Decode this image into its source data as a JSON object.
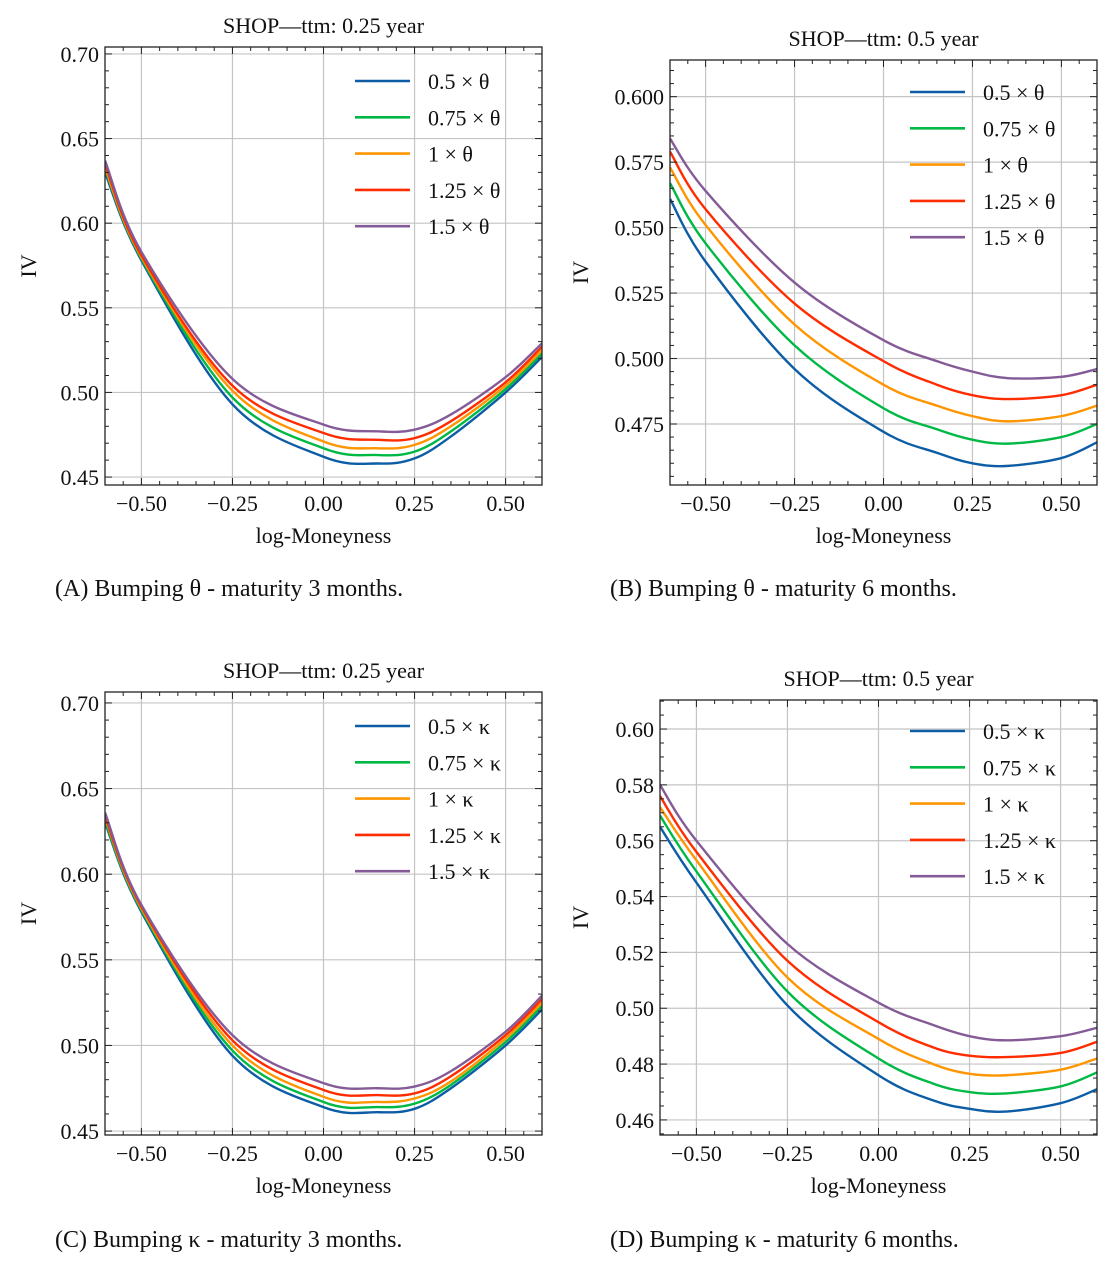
{
  "colors": {
    "series": [
      "#0C5DA5",
      "#00B945",
      "#FF9500",
      "#FF2C00",
      "#845B97"
    ],
    "grid": "#c4c4c4",
    "axis": "#222222"
  },
  "chart_data": [
    {
      "type": "line",
      "title": "SHOP—ttm: 0.25 year",
      "xlabel": "log-Moneyness",
      "ylabel": "IV",
      "xlim": [
        -0.6,
        0.6
      ],
      "ylim": [
        0.4453,
        0.7041
      ],
      "xticks": [
        "−0.50",
        "−0.25",
        "0.00",
        "0.25",
        "0.50"
      ],
      "xtick_values": [
        -0.5,
        -0.25,
        0,
        0.25,
        0.5
      ],
      "yticks": [
        "0.45",
        "0.50",
        "0.55",
        "0.60",
        "0.65",
        "0.70"
      ],
      "ytick_values": [
        0.45,
        0.5,
        0.55,
        0.6,
        0.65,
        0.7
      ],
      "ytick_minor_step": 0.01,
      "grid": true,
      "legend_position": "top-right",
      "caption_label": "(A)",
      "caption_text": "Bumping θ - maturity 3 months.",
      "x": [
        -0.6,
        -0.5,
        -0.25,
        0,
        0.15,
        0.25,
        0.35,
        0.5,
        0.6
      ],
      "series": [
        {
          "name": "0.5 × θ",
          "values": [
            0.63,
            0.578,
            0.493,
            0.462,
            0.458,
            0.461,
            0.474,
            0.5,
            0.521
          ]
        },
        {
          "name": "0.75 × θ",
          "values": [
            0.632,
            0.579,
            0.497,
            0.467,
            0.463,
            0.465,
            0.477,
            0.502,
            0.523
          ]
        },
        {
          "name": "1 × θ",
          "values": [
            0.633,
            0.58,
            0.501,
            0.471,
            0.467,
            0.469,
            0.48,
            0.504,
            0.525
          ]
        },
        {
          "name": "1.25 × θ",
          "values": [
            0.635,
            0.581,
            0.504,
            0.476,
            0.472,
            0.473,
            0.483,
            0.506,
            0.527
          ]
        },
        {
          "name": "1.5 × θ",
          "values": [
            0.637,
            0.583,
            0.508,
            0.481,
            0.477,
            0.478,
            0.487,
            0.509,
            0.529
          ]
        }
      ]
    },
    {
      "type": "line",
      "title": "SHOP—ttm: 0.5 year",
      "xlabel": "log-Moneyness",
      "ylabel": "IV",
      "xlim": [
        -0.6,
        0.6
      ],
      "ylim": [
        0.4517,
        0.614
      ],
      "xticks": [
        "−0.50",
        "−0.25",
        "0.00",
        "0.25",
        "0.50"
      ],
      "xtick_values": [
        -0.5,
        -0.25,
        0,
        0.25,
        0.5
      ],
      "yticks": [
        "0.475",
        "0.500",
        "0.525",
        "0.550",
        "0.575",
        "0.600"
      ],
      "ytick_values": [
        0.475,
        0.5,
        0.525,
        0.55,
        0.575,
        0.6
      ],
      "ytick_minor_step": 0.005,
      "grid": true,
      "legend_position": "top-right",
      "caption_label": "(B)",
      "caption_text": "Bumping θ - maturity 6 months.",
      "x": [
        -0.6,
        -0.5,
        -0.25,
        0,
        0.15,
        0.25,
        0.35,
        0.5,
        0.6
      ],
      "series": [
        {
          "name": "0.5 × θ",
          "values": [
            0.561,
            0.537,
            0.496,
            0.472,
            0.464,
            0.46,
            0.459,
            0.462,
            0.468
          ]
        },
        {
          "name": "0.75 × θ",
          "values": [
            0.567,
            0.544,
            0.505,
            0.481,
            0.473,
            0.469,
            0.4675,
            0.47,
            0.475
          ]
        },
        {
          "name": "1 × θ",
          "values": [
            0.573,
            0.551,
            0.513,
            0.49,
            0.482,
            0.478,
            0.476,
            0.478,
            0.482
          ]
        },
        {
          "name": "1.25 × θ",
          "values": [
            0.579,
            0.557,
            0.521,
            0.499,
            0.49,
            0.486,
            0.4845,
            0.486,
            0.49
          ]
        },
        {
          "name": "1.5 × θ",
          "values": [
            0.584,
            0.564,
            0.529,
            0.507,
            0.499,
            0.495,
            0.4925,
            0.493,
            0.496
          ]
        }
      ]
    },
    {
      "type": "line",
      "title": "SHOP—ttm: 0.25 year",
      "xlabel": "log-Moneyness",
      "ylabel": "IV",
      "xlim": [
        -0.6,
        0.6
      ],
      "ylim": [
        0.4477,
        0.7064
      ],
      "xticks": [
        "−0.50",
        "−0.25",
        "0.00",
        "0.25",
        "0.50"
      ],
      "xtick_values": [
        -0.5,
        -0.25,
        0,
        0.25,
        0.5
      ],
      "yticks": [
        "0.45",
        "0.50",
        "0.55",
        "0.60",
        "0.65",
        "0.70"
      ],
      "ytick_values": [
        0.45,
        0.5,
        0.55,
        0.6,
        0.65,
        0.7
      ],
      "ytick_minor_step": 0.01,
      "grid": true,
      "legend_position": "top-right",
      "caption_label": "(C)",
      "caption_text": "Bumping κ - maturity 3 months.",
      "x": [
        -0.6,
        -0.5,
        -0.25,
        0,
        0.15,
        0.25,
        0.35,
        0.5,
        0.6
      ],
      "series": [
        {
          "name": "0.5 × κ",
          "values": [
            0.63,
            0.578,
            0.494,
            0.464,
            0.461,
            0.463,
            0.475,
            0.5,
            0.521
          ]
        },
        {
          "name": "0.75 × κ",
          "values": [
            0.631,
            0.579,
            0.497,
            0.467,
            0.464,
            0.466,
            0.477,
            0.502,
            0.523
          ]
        },
        {
          "name": "1 × κ",
          "values": [
            0.633,
            0.58,
            0.5,
            0.47,
            0.467,
            0.469,
            0.479,
            0.504,
            0.525
          ]
        },
        {
          "name": "1.25 × κ",
          "values": [
            0.634,
            0.581,
            0.503,
            0.474,
            0.471,
            0.472,
            0.482,
            0.506,
            0.527
          ]
        },
        {
          "name": "1.5 × κ",
          "values": [
            0.636,
            0.582,
            0.506,
            0.478,
            0.475,
            0.476,
            0.485,
            0.508,
            0.529
          ]
        }
      ]
    },
    {
      "type": "line",
      "title": "SHOP—ttm: 0.5 year",
      "xlabel": "log-Moneyness",
      "ylabel": "IV",
      "xlim": [
        -0.6,
        0.6
      ],
      "ylim": [
        0.4546,
        0.6104
      ],
      "xticks": [
        "−0.50",
        "−0.25",
        "0.00",
        "0.25",
        "0.50"
      ],
      "xtick_values": [
        -0.5,
        -0.25,
        0,
        0.25,
        0.5
      ],
      "yticks": [
        "0.46",
        "0.48",
        "0.50",
        "0.52",
        "0.54",
        "0.56",
        "0.58",
        "0.60"
      ],
      "ytick_values": [
        0.46,
        0.48,
        0.5,
        0.52,
        0.54,
        0.56,
        0.58,
        0.6
      ],
      "ytick_minor_step": 0.005,
      "grid": true,
      "legend_position": "top-right",
      "caption_label": "(D)",
      "caption_text": "Bumping κ - maturity 6 months.",
      "x": [
        -0.6,
        -0.5,
        -0.25,
        0,
        0.15,
        0.25,
        0.35,
        0.5,
        0.6
      ],
      "series": [
        {
          "name": "0.5 × κ",
          "values": [
            0.565,
            0.545,
            0.501,
            0.476,
            0.467,
            0.464,
            0.463,
            0.466,
            0.471
          ]
        },
        {
          "name": "0.75 × κ",
          "values": [
            0.569,
            0.549,
            0.506,
            0.482,
            0.473,
            0.47,
            0.4695,
            0.472,
            0.477
          ]
        },
        {
          "name": "1 × κ",
          "values": [
            0.572,
            0.553,
            0.511,
            0.489,
            0.48,
            0.4765,
            0.476,
            0.478,
            0.482
          ]
        },
        {
          "name": "1.25 × κ",
          "values": [
            0.576,
            0.556,
            0.517,
            0.495,
            0.486,
            0.483,
            0.4825,
            0.484,
            0.488
          ]
        },
        {
          "name": "1.5 × κ",
          "values": [
            0.58,
            0.56,
            0.523,
            0.502,
            0.494,
            0.49,
            0.4885,
            0.49,
            0.493
          ]
        }
      ]
    }
  ]
}
